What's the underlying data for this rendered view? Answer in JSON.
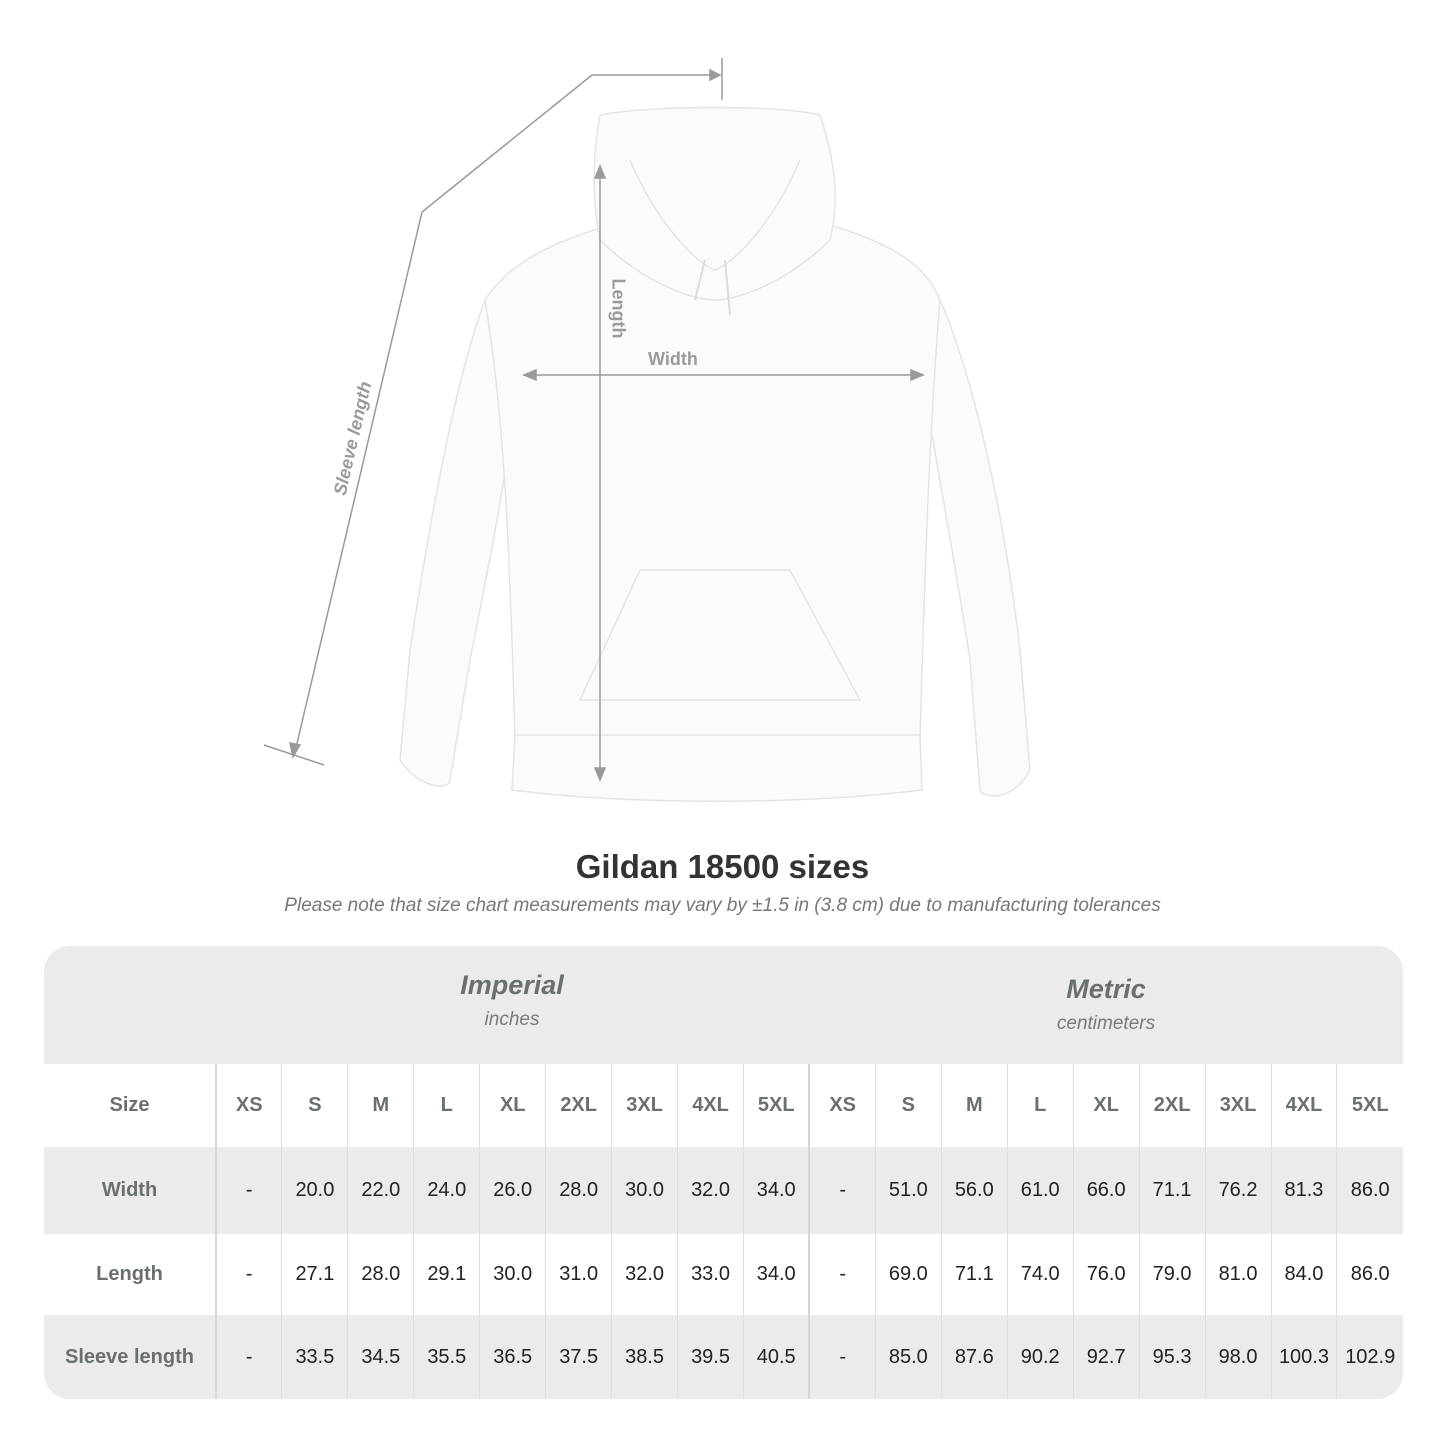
{
  "illustration": {
    "labels": {
      "length": "Length",
      "width": "Width",
      "sleeve": "Sleeve length"
    },
    "line_color": "#9a9a9a"
  },
  "title": "Gildan 18500 sizes",
  "note": "Please note that size chart measurements may vary by ±1.5 in (3.8 cm) due to manufacturing tolerances",
  "table": {
    "imperial": {
      "system": "Imperial",
      "unit": "inches"
    },
    "metric": {
      "system": "Metric",
      "unit": "centimeters"
    },
    "size_label": "Size",
    "sizes": [
      "XS",
      "S",
      "M",
      "L",
      "XL",
      "2XL",
      "3XL",
      "4XL",
      "5XL"
    ],
    "rows": [
      {
        "label": "Width",
        "imperial": [
          "-",
          "20.0",
          "22.0",
          "24.0",
          "26.0",
          "28.0",
          "30.0",
          "32.0",
          "34.0"
        ],
        "metric": [
          "-",
          "51.0",
          "56.0",
          "61.0",
          "66.0",
          "71.1",
          "76.2",
          "81.3",
          "86.0"
        ]
      },
      {
        "label": "Length",
        "imperial": [
          "-",
          "27.1",
          "28.0",
          "29.1",
          "30.0",
          "31.0",
          "32.0",
          "33.0",
          "34.0"
        ],
        "metric": [
          "-",
          "69.0",
          "71.1",
          "74.0",
          "76.0",
          "79.0",
          "81.0",
          "84.0",
          "86.0"
        ]
      },
      {
        "label": "Sleeve length",
        "imperial": [
          "-",
          "33.5",
          "34.5",
          "35.5",
          "36.5",
          "37.5",
          "38.5",
          "39.5",
          "40.5"
        ],
        "metric": [
          "-",
          "85.0",
          "87.6",
          "90.2",
          "92.7",
          "95.3",
          "98.0",
          "100.3",
          "102.9"
        ]
      }
    ]
  }
}
